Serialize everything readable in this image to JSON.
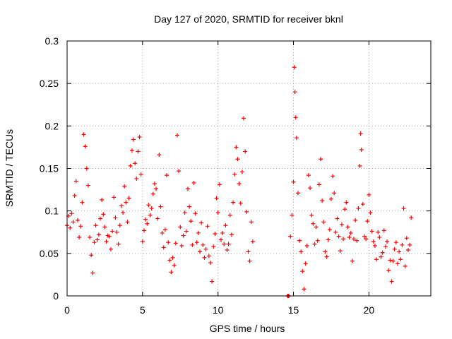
{
  "chart_data": {
    "type": "scatter",
    "title": "Day 127 of 2020, SRMTID for receiver bknl",
    "xlabel": "GPS time / hours",
    "ylabel": "SRMTID / TECUs",
    "xlim": [
      0,
      24.1
    ],
    "ylim": [
      0,
      0.3
    ],
    "xticks": [
      0,
      5,
      10,
      15,
      20
    ],
    "xtick_labels": [
      "0",
      "5",
      "10",
      "15",
      "20"
    ],
    "yticks": [
      0,
      0.05,
      0.1,
      0.15,
      0.2,
      0.25,
      0.3
    ],
    "ytick_labels": [
      "0",
      "0.05",
      "0.1",
      "0.15",
      "0.2",
      "0.25",
      "0.3"
    ],
    "grid": true,
    "marker": "plus",
    "color": "#ff0000",
    "series": [
      {
        "name": "SRMTID",
        "points": [
          [
            0.0,
            0.083
          ],
          [
            0.1,
            0.094
          ],
          [
            0.2,
            0.08
          ],
          [
            0.3,
            0.097
          ],
          [
            0.4,
            0.087
          ],
          [
            0.5,
            0.118
          ],
          [
            0.6,
            0.135
          ],
          [
            0.7,
            0.089
          ],
          [
            0.8,
            0.069
          ],
          [
            0.9,
            0.082
          ],
          [
            1.0,
            0.11
          ],
          [
            1.1,
            0.19
          ],
          [
            1.2,
            0.176
          ],
          [
            1.3,
            0.15
          ],
          [
            1.4,
            0.13
          ],
          [
            1.5,
            0.069
          ],
          [
            1.6,
            0.048
          ],
          [
            1.7,
            0.027
          ],
          [
            1.8,
            0.063
          ],
          [
            1.9,
            0.083
          ],
          [
            2.0,
            0.066
          ],
          [
            2.1,
            0.072
          ],
          [
            2.2,
            0.091
          ],
          [
            2.3,
            0.113
          ],
          [
            2.4,
            0.096
          ],
          [
            2.5,
            0.081
          ],
          [
            2.6,
            0.064
          ],
          [
            2.7,
            0.071
          ],
          [
            2.8,
            0.07
          ],
          [
            2.9,
            0.055
          ],
          [
            3.0,
            0.076
          ],
          [
            3.1,
            0.116
          ],
          [
            3.2,
            0.092
          ],
          [
            3.3,
            0.075
          ],
          [
            3.4,
            0.061
          ],
          [
            3.5,
            0.083
          ],
          [
            3.6,
            0.106
          ],
          [
            3.7,
            0.098
          ],
          [
            3.8,
            0.129
          ],
          [
            3.9,
            0.11
          ],
          [
            4.0,
            0.087
          ],
          [
            4.1,
            0.115
          ],
          [
            4.2,
            0.153
          ],
          [
            4.3,
            0.171
          ],
          [
            4.4,
            0.184
          ],
          [
            4.5,
            0.156
          ],
          [
            4.6,
            0.138
          ],
          [
            4.7,
            0.17
          ],
          [
            4.8,
            0.187
          ],
          [
            4.9,
            0.143
          ],
          [
            5.0,
            0.064
          ],
          [
            5.1,
            0.077
          ],
          [
            5.2,
            0.09
          ],
          [
            5.3,
            0.085
          ],
          [
            5.4,
            0.107
          ],
          [
            5.5,
            0.095
          ],
          [
            5.6,
            0.103
          ],
          [
            5.7,
            0.12
          ],
          [
            5.8,
            0.132
          ],
          [
            5.9,
            0.126
          ],
          [
            6.0,
            0.091
          ],
          [
            6.1,
            0.166
          ],
          [
            6.2,
            0.105
          ],
          [
            6.3,
            0.074
          ],
          [
            6.4,
            0.057
          ],
          [
            6.5,
            0.078
          ],
          [
            6.6,
            0.142
          ],
          [
            6.7,
            0.063
          ],
          [
            6.8,
            0.042
          ],
          [
            6.9,
            0.028
          ],
          [
            7.0,
            0.045
          ],
          [
            7.1,
            0.036
          ],
          [
            7.2,
            0.062
          ],
          [
            7.3,
            0.189
          ],
          [
            7.4,
            0.147
          ],
          [
            7.5,
            0.081
          ],
          [
            7.6,
            0.059
          ],
          [
            7.7,
            0.071
          ],
          [
            7.8,
            0.098
          ],
          [
            7.9,
            0.076
          ],
          [
            8.0,
            0.126
          ],
          [
            8.1,
            0.105
          ],
          [
            8.2,
            0.088
          ],
          [
            8.3,
            0.06
          ],
          [
            8.4,
            0.133
          ],
          [
            8.5,
            0.097
          ],
          [
            8.6,
            0.063
          ],
          [
            8.7,
            0.074
          ],
          [
            8.8,
            0.052
          ],
          [
            8.9,
            0.086
          ],
          [
            9.0,
            0.06
          ],
          [
            9.1,
            0.045
          ],
          [
            9.2,
            0.055
          ],
          [
            9.3,
            0.082
          ],
          [
            9.4,
            0.047
          ],
          [
            9.5,
            0.039
          ],
          [
            9.6,
            0.017
          ],
          [
            9.7,
            0.058
          ],
          [
            9.8,
            0.073
          ],
          [
            9.9,
            0.115
          ],
          [
            10.0,
            0.098
          ],
          [
            10.1,
            0.131
          ],
          [
            10.2,
            0.066
          ],
          [
            10.3,
            0.074
          ],
          [
            10.4,
            0.061
          ],
          [
            10.5,
            0.083
          ],
          [
            10.6,
            0.054
          ],
          [
            10.7,
            0.061
          ],
          [
            10.8,
            0.095
          ],
          [
            10.9,
            0.072
          ],
          [
            11.0,
            0.11
          ],
          [
            11.1,
            0.143
          ],
          [
            11.2,
            0.175
          ],
          [
            11.3,
            0.161
          ],
          [
            11.4,
            0.132
          ],
          [
            11.5,
            0.109
          ],
          [
            11.6,
            0.146
          ],
          [
            11.7,
            0.209
          ],
          [
            11.8,
            0.17
          ],
          [
            11.9,
            0.099
          ],
          [
            12.0,
            0.052
          ],
          [
            12.1,
            0.041
          ],
          [
            12.2,
            0.087
          ],
          [
            12.3,
            0.064
          ],
          [
            14.6,
            0.0
          ],
          [
            14.65,
            0.0
          ],
          [
            14.7,
            0.0
          ],
          [
            14.8,
            0.07
          ],
          [
            14.9,
            0.095
          ],
          [
            15.0,
            0.134
          ],
          [
            15.05,
            0.269
          ],
          [
            15.1,
            0.24
          ],
          [
            15.15,
            0.21
          ],
          [
            15.2,
            0.186
          ],
          [
            15.3,
            0.121
          ],
          [
            15.4,
            0.065
          ],
          [
            15.5,
            0.052
          ],
          [
            15.6,
            0.029
          ],
          [
            15.7,
            0.008
          ],
          [
            15.8,
            0.038
          ],
          [
            15.9,
            0.059
          ],
          [
            16.0,
            0.142
          ],
          [
            16.1,
            0.127
          ],
          [
            16.2,
            0.095
          ],
          [
            16.3,
            0.085
          ],
          [
            16.4,
            0.061
          ],
          [
            16.5,
            0.081
          ],
          [
            16.6,
            0.065
          ],
          [
            16.7,
            0.131
          ],
          [
            16.8,
            0.161
          ],
          [
            16.9,
            0.112
          ],
          [
            17.0,
            0.087
          ],
          [
            17.1,
            0.052
          ],
          [
            17.2,
            0.046
          ],
          [
            17.3,
            0.066
          ],
          [
            17.4,
            0.078
          ],
          [
            17.5,
            0.114
          ],
          [
            17.6,
            0.141
          ],
          [
            17.7,
            0.121
          ],
          [
            17.8,
            0.075
          ],
          [
            17.9,
            0.091
          ],
          [
            18.0,
            0.07
          ],
          [
            18.1,
            0.053
          ],
          [
            18.2,
            0.084
          ],
          [
            18.3,
            0.067
          ],
          [
            18.4,
            0.102
          ],
          [
            18.5,
            0.11
          ],
          [
            18.6,
            0.081
          ],
          [
            18.7,
            0.069
          ],
          [
            18.8,
            0.074
          ],
          [
            18.9,
            0.041
          ],
          [
            19.0,
            0.067
          ],
          [
            19.1,
            0.089
          ],
          [
            19.2,
            0.065
          ],
          [
            19.3,
            0.103
          ],
          [
            19.4,
            0.153
          ],
          [
            19.45,
            0.191
          ],
          [
            19.5,
            0.172
          ],
          [
            19.6,
            0.108
          ],
          [
            19.7,
            0.07
          ],
          [
            19.8,
            0.067
          ],
          [
            19.9,
            0.088
          ],
          [
            20.0,
            0.119
          ],
          [
            20.1,
            0.098
          ],
          [
            20.2,
            0.076
          ],
          [
            20.3,
            0.064
          ],
          [
            20.4,
            0.059
          ],
          [
            20.5,
            0.043
          ],
          [
            20.6,
            0.075
          ],
          [
            20.7,
            0.069
          ],
          [
            20.8,
            0.046
          ],
          [
            20.9,
            0.051
          ],
          [
            21.0,
            0.077
          ],
          [
            21.1,
            0.058
          ],
          [
            21.2,
            0.064
          ],
          [
            21.3,
            0.03
          ],
          [
            21.4,
            0.042
          ],
          [
            21.5,
            0.017
          ],
          [
            21.6,
            0.041
          ],
          [
            21.7,
            0.055
          ],
          [
            21.8,
            0.063
          ],
          [
            21.9,
            0.038
          ],
          [
            22.0,
            0.052
          ],
          [
            22.1,
            0.043
          ],
          [
            22.2,
            0.06
          ],
          [
            22.3,
            0.103
          ],
          [
            22.4,
            0.035
          ],
          [
            22.5,
            0.068
          ],
          [
            22.6,
            0.054
          ],
          [
            22.7,
            0.06
          ],
          [
            22.8,
            0.092
          ]
        ]
      }
    ]
  }
}
